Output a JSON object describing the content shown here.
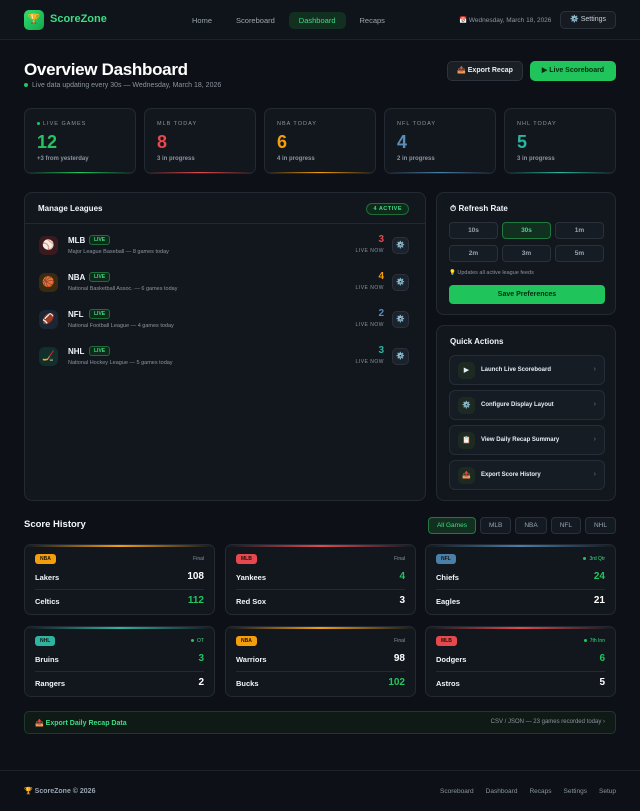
{
  "header": {
    "brand": "ScoreZone",
    "nav": [
      "Home",
      "Scoreboard",
      "Dashboard",
      "Recaps"
    ],
    "date": "Wednesday, March 18, 2026",
    "settings": "Settings"
  },
  "page": {
    "title": "Overview Dashboard",
    "subtitle": "Live data updating every 30s — Wednesday, March 18, 2026",
    "actions": [
      "Export Recap",
      "Live Scoreboard"
    ]
  },
  "stats": [
    {
      "label": "LIVE GAMES",
      "value": 12,
      "note": "+3 from yesterday"
    },
    {
      "label": "MLB TODAY",
      "value": 8,
      "note": "3 in progress"
    },
    {
      "label": "NBA TODAY",
      "value": 6,
      "note": "4 in progress"
    },
    {
      "label": "NFL TODAY",
      "value": 4,
      "note": "2 in progress"
    },
    {
      "label": "NHL TODAY",
      "value": 5,
      "note": "3 in progress"
    }
  ],
  "leagues": {
    "title": "Manage Leagues",
    "badge": "4 ACTIVE",
    "items": [
      {
        "name": "MLB",
        "status": "LIVE",
        "description": "Major League Baseball — 8 games today",
        "count": 3,
        "count_label": "LIVE NOW"
      },
      {
        "name": "NBA",
        "status": "LIVE",
        "description": "National Basketball Assoc. — 6 games today",
        "count": 4,
        "count_label": "LIVE NOW"
      },
      {
        "name": "NFL",
        "status": "LIVE",
        "description": "National Football League — 4 games today",
        "count": 2,
        "count_label": "LIVE NOW"
      },
      {
        "name": "NHL",
        "status": "LIVE",
        "description": "National Hockey League — 5 games today",
        "count": 3,
        "count_label": "LIVE NOW"
      }
    ]
  },
  "refresh": {
    "title": "Refresh Rate",
    "options": [
      "10s",
      "30s",
      "1m",
      "2m",
      "3m",
      "5m"
    ],
    "note": "Updates all active league feeds",
    "button": "Save Preferences"
  },
  "quick_actions": {
    "title": "Quick Actions",
    "items": [
      "Launch Live Scoreboard",
      "Configure Display Layout",
      "View Daily Recap Summary",
      "Export Score History"
    ]
  },
  "score_history": {
    "title": "Score History",
    "filters": [
      "All Games",
      "MLB",
      "NBA",
      "NFL",
      "NHL"
    ],
    "games": [
      {
        "league": "NBA",
        "status": "Final",
        "teams": [
          {
            "name": "Lakers",
            "score": 108
          },
          {
            "name": "Celtics",
            "score": 112
          }
        ]
      },
      {
        "league": "MLB",
        "status": "Final",
        "teams": [
          {
            "name": "Yankees",
            "score": 4
          },
          {
            "name": "Red Sox",
            "score": 3
          }
        ]
      },
      {
        "league": "NFL",
        "status": "3rd Qtr",
        "teams": [
          {
            "name": "Chiefs",
            "score": 24
          },
          {
            "name": "Eagles",
            "score": 21
          }
        ]
      },
      {
        "league": "NHL",
        "status": "OT",
        "teams": [
          {
            "name": "Bruins",
            "score": 3
          },
          {
            "name": "Rangers",
            "score": 2
          }
        ]
      },
      {
        "league": "NBA",
        "status": "Final",
        "teams": [
          {
            "name": "Warriors",
            "score": 98
          },
          {
            "name": "Bucks",
            "score": 102
          }
        ]
      },
      {
        "league": "MLB",
        "status": "7th Inn",
        "teams": [
          {
            "name": "Dodgers",
            "score": 6
          },
          {
            "name": "Astros",
            "score": 5
          }
        ]
      }
    ]
  },
  "export": {
    "label": "Export Daily Recap Data",
    "detail": "CSV / JSON — 23 games recorded today ›"
  },
  "footer": {
    "brand": "ScoreZone © 2026",
    "links": [
      "Scoreboard",
      "Dashboard",
      "Recaps",
      "Settings",
      "Setup"
    ]
  }
}
